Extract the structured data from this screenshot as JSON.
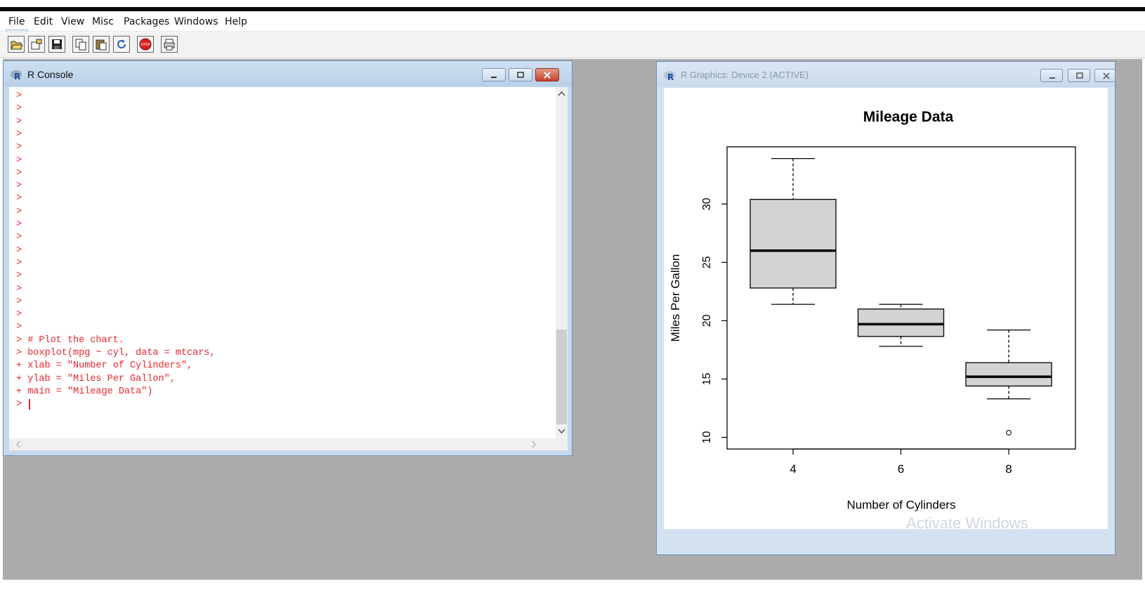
{
  "menu": [
    "File",
    "Edit",
    "View",
    "Misc",
    "Packages",
    "Windows",
    "Help"
  ],
  "toolbar": {
    "icons": [
      "open-script-icon",
      "load-workspace-icon",
      "save-icon",
      "copy-icon",
      "paste-icon",
      "refresh-icon",
      "stop-icon",
      "print-icon"
    ],
    "stop_label": "STOP"
  },
  "console": {
    "title": "R Console",
    "empty_prompts": 19,
    "lines": [
      "> # Plot the chart.",
      "> boxplot(mpg ~ cyl, data = mtcars,",
      "+ xlab = \"Number of Cylinders\",",
      "+ ylab = \"Miles Per Gallon\",",
      "+ main = \"Mileage Data\")",
      "> "
    ],
    "prompt": ">",
    "text_color": "#e8262d"
  },
  "graphics": {
    "title": "R Graphics: Device 2 (ACTIVE)",
    "watermark": "Activate Windows"
  },
  "chart_data": {
    "type": "box",
    "title": "Mileage Data",
    "xlabel": "Number of Cylinders",
    "ylabel": "Miles Per Gallon",
    "categories": [
      "4",
      "6",
      "8"
    ],
    "y_ticks": [
      10,
      15,
      20,
      25,
      30
    ],
    "ylim": [
      9.0,
      34.9
    ],
    "boxes": [
      {
        "whisker_low": 21.4,
        "q1": 22.8,
        "median": 26.0,
        "q3": 30.4,
        "whisker_high": 33.9,
        "outliers": []
      },
      {
        "whisker_low": 17.8,
        "q1": 18.65,
        "median": 19.7,
        "q3": 21.0,
        "whisker_high": 21.4,
        "outliers": []
      },
      {
        "whisker_low": 13.3,
        "q1": 14.4,
        "median": 15.2,
        "q3": 16.4,
        "whisker_high": 19.2,
        "outliers": [
          10.4
        ]
      }
    ],
    "box_fill": "#d3d3d3",
    "grid": false
  }
}
